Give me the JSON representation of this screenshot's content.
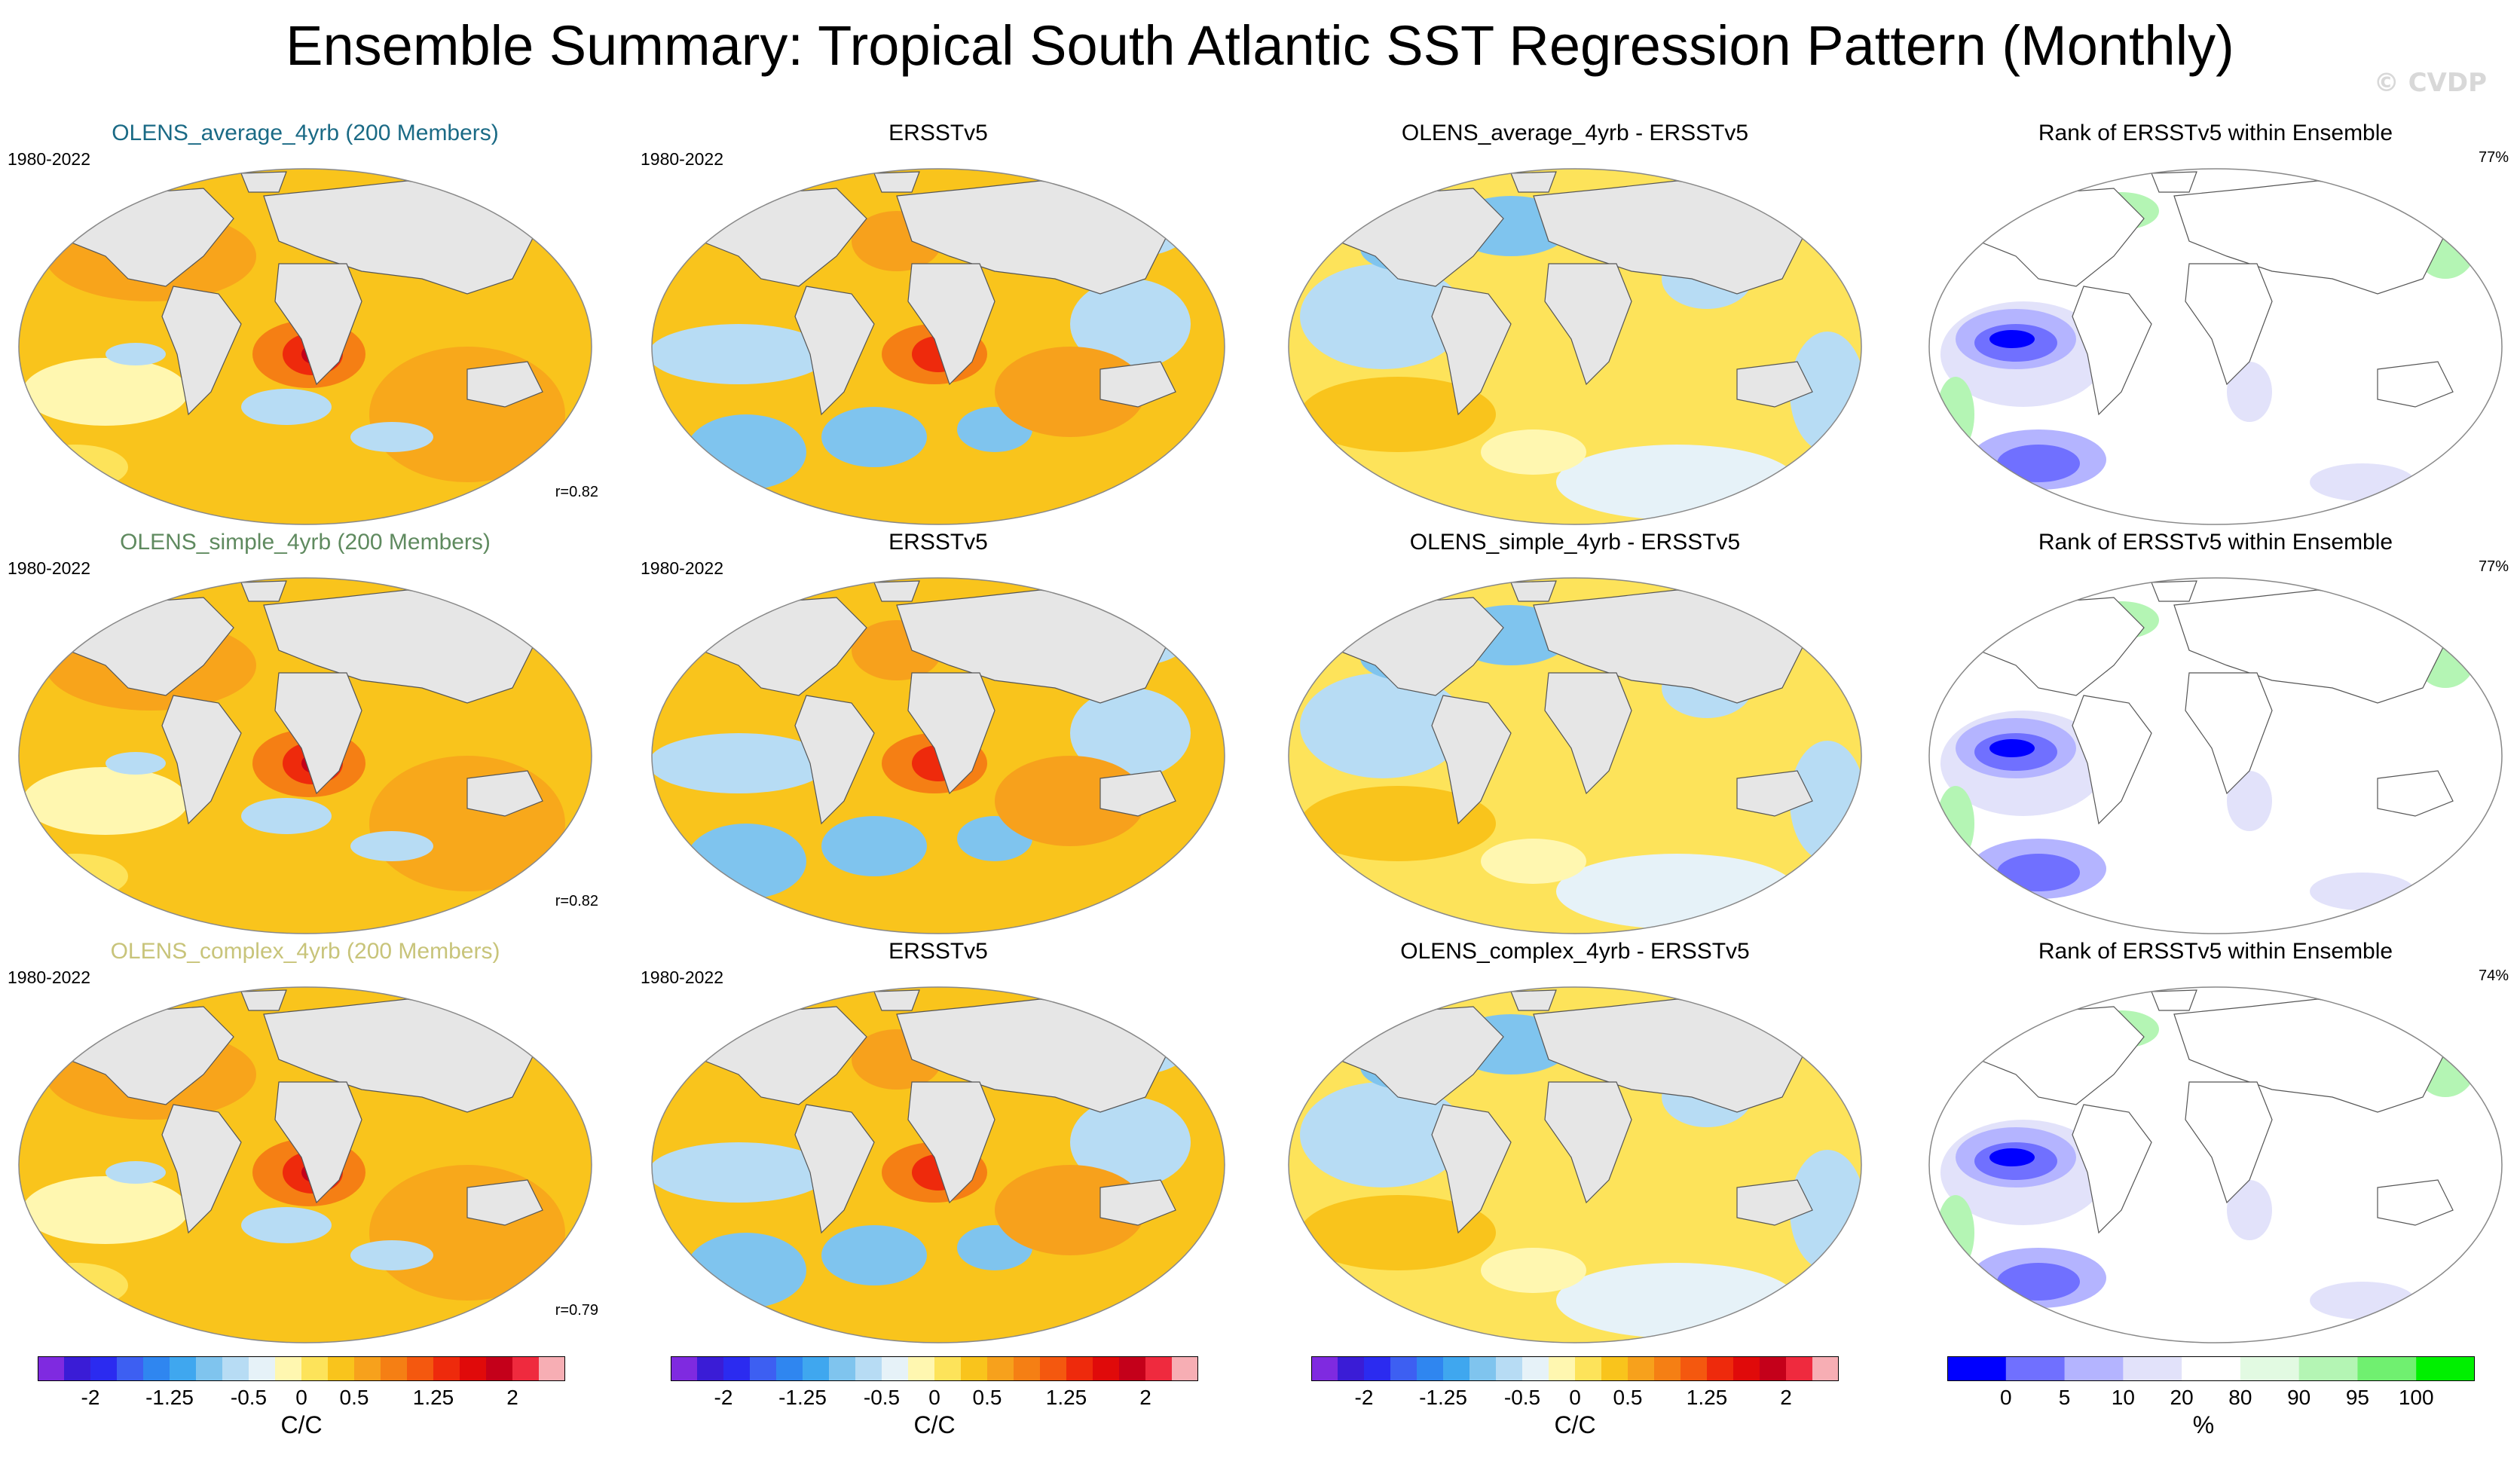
{
  "title": "Ensemble Summary: Tropical South Atlantic SST Regression Pattern (Monthly)",
  "watermark": "© CVDP",
  "rows": [
    {
      "ensemble": {
        "title": "OLENS_average_4yrb (200 Members)",
        "title_color": "#1a6a85",
        "years": "1980-2022",
        "corr": "r=0.82"
      },
      "obs": {
        "title": "ERSSTv5",
        "years": "1980-2022"
      },
      "diff": {
        "title": "OLENS_average_4yrb - ERSSTv5"
      },
      "rank": {
        "title": "Rank of ERSSTv5 within Ensemble",
        "percent": "77%"
      }
    },
    {
      "ensemble": {
        "title": "OLENS_simple_4yrb (200 Members)",
        "title_color": "#5f8a5f",
        "years": "1980-2022",
        "corr": "r=0.82"
      },
      "obs": {
        "title": "ERSSTv5",
        "years": "1980-2022"
      },
      "diff": {
        "title": "OLENS_simple_4yrb - ERSSTv5"
      },
      "rank": {
        "title": "Rank of ERSSTv5 within Ensemble",
        "percent": "77%"
      }
    },
    {
      "ensemble": {
        "title": "OLENS_complex_4yrb (200 Members)",
        "title_color": "#c8c47a",
        "years": "1980-2022",
        "corr": "r=0.79"
      },
      "obs": {
        "title": "ERSSTv5",
        "years": "1980-2022"
      },
      "diff": {
        "title": "OLENS_complex_4yrb - ERSSTv5"
      },
      "rank": {
        "title": "Rank of ERSSTv5 within Ensemble",
        "percent": "74%"
      }
    }
  ],
  "colorbars": {
    "sst": {
      "colors": [
        "#7f2ae0",
        "#3a1cd6",
        "#2b2bf0",
        "#3d5ff2",
        "#2f86f0",
        "#3fa7ef",
        "#7fc4ee",
        "#b7dcf4",
        "#e6f2f8",
        "#fff7b0",
        "#fde35a",
        "#f9c41c",
        "#f7a11c",
        "#f57f14",
        "#f4580f",
        "#ee2a0c",
        "#e00a0a",
        "#c4001a",
        "#ef2a3e",
        "#f7aeb4"
      ],
      "labels": [
        "-2",
        "-1.25",
        "-0.5",
        "0",
        "0.5",
        "1.25",
        "2"
      ],
      "units": "C/C"
    },
    "rank": {
      "colors": [
        "#0000ff",
        "#7070ff",
        "#b4b4ff",
        "#e2e2fa",
        "#ffffff",
        "#e2fae2",
        "#b4f5b4",
        "#70f070",
        "#00f000"
      ],
      "labels": [
        "0",
        "5",
        "10",
        "20",
        "80",
        "90",
        "95",
        "100"
      ],
      "units": "%"
    }
  },
  "chart_data": {
    "type": "heatmap",
    "description_units": "SST regression onto Tropical South Atlantic index, C/C",
    "value_range": [
      -2,
      2
    ],
    "contour_levels": [
      -2,
      -1.75,
      -1.5,
      -1.25,
      -1,
      -0.75,
      -0.5,
      -0.25,
      0,
      0.25,
      0.5,
      0.75,
      1,
      1.25,
      1.5,
      1.75,
      2
    ],
    "rank_levels": [
      0,
      5,
      10,
      20,
      80,
      90,
      95,
      100
    ],
    "pattern_correlations": {
      "OLENS_average_4yrb": 0.82,
      "OLENS_simple_4yrb": 0.82,
      "OLENS_complex_4yrb": 0.79
    },
    "rank_of_obs_in_ensemble_percent": {
      "OLENS_average_4yrb": 77,
      "OLENS_simple_4yrb": 77,
      "OLENS_complex_4yrb": 74
    }
  }
}
